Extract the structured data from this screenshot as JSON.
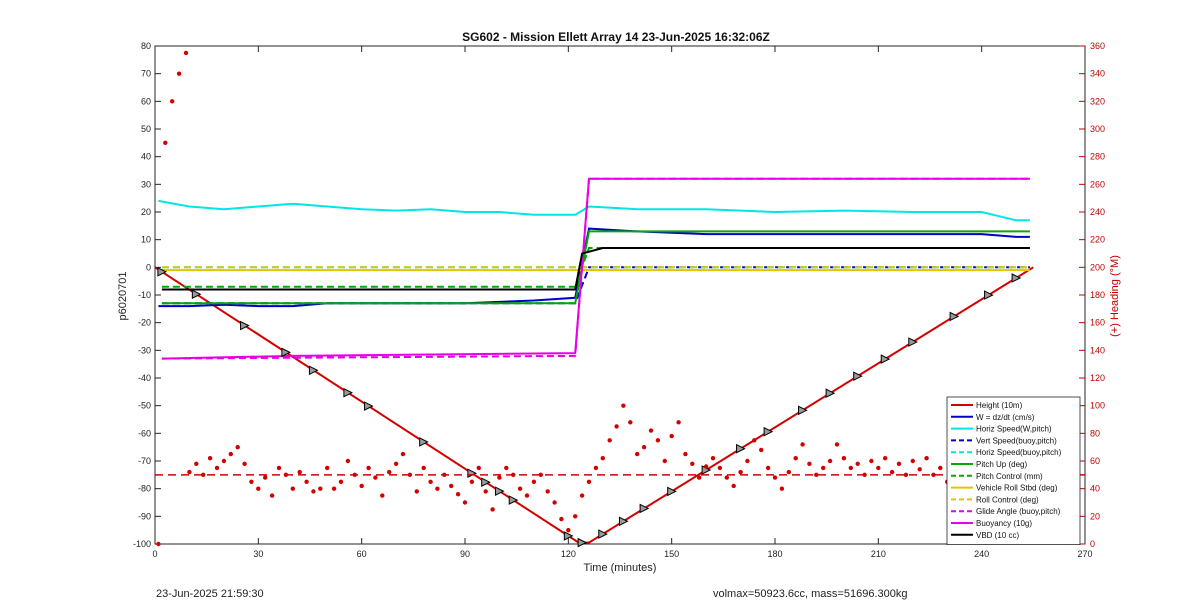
{
  "chart_data": {
    "type": "line",
    "title": "SG602 - Mission Ellett Array 14 23-Jun-2025 16:32:06Z",
    "xlabel": "Time (minutes)",
    "ylabel_left": "p6020701",
    "ylabel_right": "(+) Heading (°M)",
    "xlim": [
      0,
      270
    ],
    "ylim_left": [
      -100,
      80
    ],
    "ylim_right": [
      0,
      360
    ],
    "xticks": [
      0,
      30,
      60,
      90,
      120,
      150,
      180,
      210,
      240,
      270
    ],
    "yticks_left": [
      -100,
      -90,
      -80,
      -70,
      -60,
      -50,
      -40,
      -30,
      -20,
      -10,
      0,
      10,
      20,
      30,
      40,
      50,
      60,
      70,
      80
    ],
    "yticks_right": [
      0,
      20,
      40,
      60,
      80,
      100,
      120,
      140,
      160,
      180,
      200,
      220,
      240,
      260,
      280,
      300,
      320,
      340,
      360
    ],
    "grid": false,
    "legend_position": "bottom-right",
    "colors": {
      "height": "#d40000",
      "w": "#0000cc",
      "hspeed": "#00e6e6",
      "pitch": "#00aa00",
      "roll": "#e6c300",
      "glide": "#e600e6",
      "vbd": "#000000",
      "heading": "#d40000"
    },
    "series": [
      {
        "name": "Height (10m)",
        "x": [
          0,
          123,
          126,
          255
        ],
        "y": [
          0,
          -99.5,
          -99.5,
          0
        ]
      },
      {
        "name": "W = dz/dt (cm/s)",
        "x": [
          1,
          10,
          20,
          30,
          40,
          50,
          60,
          70,
          80,
          90,
          100,
          110,
          122,
          126,
          140,
          160,
          180,
          200,
          220,
          240,
          250,
          254
        ],
        "y": [
          -14,
          -14,
          -13.5,
          -14,
          -14,
          -13,
          -13,
          -13,
          -13,
          -13,
          -12.5,
          -12,
          -11,
          14,
          13,
          12,
          12,
          12,
          12,
          12,
          11,
          11
        ]
      },
      {
        "name": "Horiz Speed(W,pitch)",
        "x": [
          1,
          10,
          20,
          30,
          40,
          50,
          60,
          70,
          80,
          90,
          100,
          110,
          122,
          126,
          140,
          160,
          180,
          200,
          220,
          240,
          250,
          254
        ],
        "y": [
          24,
          22,
          21,
          22,
          23,
          22,
          21,
          20.5,
          21,
          20,
          20,
          19,
          19,
          22,
          21,
          21,
          20,
          20.5,
          20,
          20,
          17,
          17
        ]
      },
      {
        "name": "Vert Speed(buoy,pitch)",
        "x": [
          2,
          122,
          126,
          254
        ],
        "y": [
          -13,
          -13,
          0,
          0
        ]
      },
      {
        "name": "Horiz Speed(buoy,pitch)",
        "x": [
          2,
          122,
          126,
          254
        ],
        "y": [
          0,
          0,
          0,
          0
        ]
      },
      {
        "name": "Pitch Up (deg)",
        "x": [
          2,
          122,
          126,
          254
        ],
        "y": [
          -13,
          -13,
          13,
          13
        ]
      },
      {
        "name": "Pitch Control (mm)",
        "x": [
          2,
          122,
          126,
          254
        ],
        "y": [
          -7,
          -7,
          7,
          7
        ]
      },
      {
        "name": "Vehicle Roll Stbd (deg)",
        "x": [
          2,
          122,
          126,
          254
        ],
        "y": [
          -1,
          -1,
          -1,
          -1
        ]
      },
      {
        "name": "Roll Control (deg)",
        "x": [
          2,
          122,
          126,
          254
        ],
        "y": [
          0,
          0,
          0,
          0
        ]
      },
      {
        "name": "Glide Angle (buoy,pitch)",
        "x": [
          2,
          122,
          126,
          254
        ],
        "y": [
          -33,
          -32,
          32,
          32
        ]
      },
      {
        "name": "Buoyancy (10g)",
        "x": [
          2,
          40,
          122,
          126,
          254
        ],
        "y": [
          -33,
          -32,
          -31,
          32,
          32
        ]
      },
      {
        "name": "VBD (10 cc)",
        "x": [
          2,
          122,
          124,
          130,
          254
        ],
        "y": [
          -8,
          -8,
          5,
          7,
          7
        ]
      }
    ],
    "heading_points": {
      "axis": "right",
      "x": [
        1,
        3,
        5,
        7,
        9,
        10,
        12,
        14,
        16,
        18,
        20,
        22,
        24,
        26,
        28,
        30,
        32,
        34,
        36,
        38,
        40,
        42,
        44,
        46,
        48,
        50,
        52,
        54,
        56,
        58,
        60,
        62,
        64,
        66,
        68,
        70,
        72,
        74,
        76,
        78,
        80,
        82,
        84,
        86,
        88,
        90,
        92,
        94,
        96,
        98,
        100,
        102,
        104,
        106,
        108,
        110,
        112,
        114,
        116,
        118,
        120,
        122,
        124,
        126,
        128,
        130,
        132,
        134,
        136,
        138,
        140,
        142,
        144,
        146,
        148,
        150,
        152,
        154,
        156,
        158,
        160,
        162,
        164,
        166,
        168,
        170,
        172,
        174,
        176,
        178,
        180,
        182,
        184,
        186,
        188,
        190,
        192,
        194,
        196,
        198,
        200,
        202,
        204,
        206,
        208,
        210,
        212,
        214,
        216,
        218,
        220,
        222,
        224,
        226,
        228,
        230,
        232,
        234,
        236,
        238,
        240,
        242,
        244,
        246,
        248,
        250,
        252
      ],
      "y": [
        0,
        290,
        320,
        340,
        355,
        52,
        58,
        50,
        62,
        55,
        60,
        65,
        70,
        58,
        45,
        40,
        48,
        35,
        55,
        50,
        40,
        52,
        45,
        38,
        40,
        55,
        40,
        45,
        60,
        50,
        42,
        55,
        48,
        35,
        52,
        58,
        65,
        50,
        38,
        55,
        45,
        40,
        50,
        42,
        36,
        30,
        45,
        55,
        38,
        25,
        48,
        55,
        50,
        40,
        35,
        45,
        50,
        38,
        30,
        18,
        10,
        20,
        35,
        45,
        55,
        62,
        75,
        85,
        100,
        88,
        65,
        70,
        82,
        75,
        60,
        78,
        88,
        65,
        58,
        48,
        56,
        62,
        55,
        48,
        42,
        52,
        60,
        75,
        68,
        55,
        48,
        40,
        52,
        62,
        72,
        58,
        50,
        55,
        60,
        72,
        62,
        55,
        58,
        50,
        60,
        55,
        62,
        52,
        58,
        50,
        60,
        54,
        62,
        50,
        55,
        45,
        60,
        72,
        55,
        45,
        65,
        78,
        62,
        70,
        55,
        42,
        50
      ]
    },
    "heading_ref": {
      "axis": "right",
      "value": 50
    }
  },
  "legend": [
    {
      "label": "Height (10m)",
      "color": "#d40000",
      "style": "solid"
    },
    {
      "label": "W = dz/dt (cm/s)",
      "color": "#0000cc",
      "style": "solid"
    },
    {
      "label": "Horiz Speed(W,pitch)",
      "color": "#00e6e6",
      "style": "solid"
    },
    {
      "label": "Vert Speed(buoy,pitch)",
      "color": "#0000cc",
      "style": "dashed"
    },
    {
      "label": "Horiz Speed(buoy,pitch)",
      "color": "#00e6e6",
      "style": "dashed"
    },
    {
      "label": "Pitch Up (deg)",
      "color": "#00aa00",
      "style": "solid"
    },
    {
      "label": "Pitch Control (mm)",
      "color": "#00aa00",
      "style": "dashed"
    },
    {
      "label": "Vehicle Roll Stbd (deg)",
      "color": "#e6c300",
      "style": "solid"
    },
    {
      "label": "Roll Control (deg)",
      "color": "#e6c300",
      "style": "dashed"
    },
    {
      "label": "Glide Angle (buoy,pitch)",
      "color": "#e600e6",
      "style": "dashed"
    },
    {
      "label": "Buoyancy (10g)",
      "color": "#e600e6",
      "style": "solid"
    },
    {
      "label": "VBD (10 cc)",
      "color": "#000000",
      "style": "solid"
    }
  ],
  "footer": {
    "timestamp": "23-Jun-2025 21:59:30",
    "volmax_mass": "volmax=50923.6cc, mass=51696.300kg"
  }
}
